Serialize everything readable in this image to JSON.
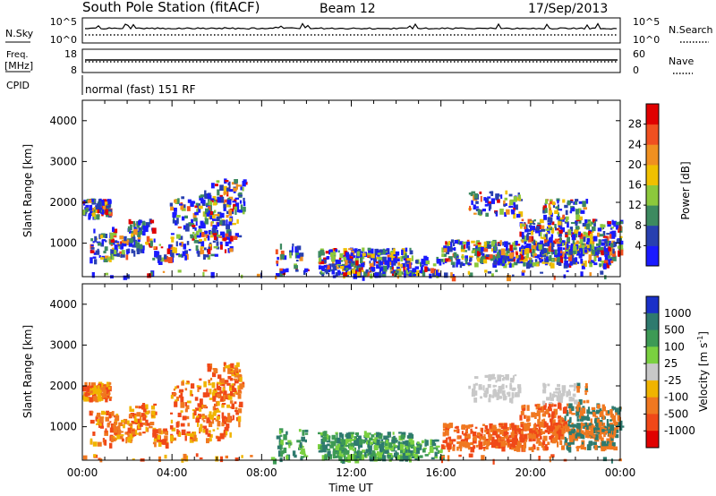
{
  "header": {
    "station": "South Pole Station (fitACF)",
    "beam": "Beam 12",
    "date": "17/Sep/2013"
  },
  "noise_panel": {
    "left_label": "N.Sky",
    "right_label": "N.Search",
    "left_ticks": [
      "10^5",
      "10^0"
    ],
    "right_ticks": [
      "10^5",
      "10^0"
    ]
  },
  "freq_panel": {
    "left_label_1": "Freq.",
    "left_label_2": "[MHz]",
    "right_label": "Nave",
    "left_ticks": [
      "18",
      "8"
    ],
    "right_ticks": [
      "60",
      "0"
    ]
  },
  "cpid_panel": {
    "label": "CPID",
    "text": "normal (fast) 151 RF"
  },
  "chart_data": [
    {
      "type": "heatmap",
      "ylabel": "Slant Range [km]",
      "ylim": [
        180,
        4500
      ],
      "y_ticks": [
        1000,
        2000,
        3000,
        4000
      ],
      "x_ticks": [
        "00:00",
        "04:00",
        "08:00",
        "12:00",
        "16:00",
        "20:00",
        "00:00"
      ],
      "colorbar": {
        "label": "Power [dB]",
        "ticks": [
          "4",
          "8",
          "12",
          "16",
          "20",
          "24",
          "28"
        ],
        "colors": [
          "#1a1aff",
          "#2840b0",
          "#3d8a60",
          "#8cc83c",
          "#f0c000",
          "#f09020",
          "#f05020",
          "#e00000"
        ]
      }
    },
    {
      "type": "heatmap",
      "ylabel": "Slant Range [km]",
      "ylim": [
        180,
        4500
      ],
      "y_ticks": [
        1000,
        2000,
        3000,
        4000
      ],
      "x_ticks": [
        "00:00",
        "04:00",
        "08:00",
        "12:00",
        "16:00",
        "20:00",
        "00:00"
      ],
      "xlabel": "Time UT",
      "colorbar": {
        "label": "Velocity [m s",
        "label_sup": "-1",
        "label_close": "]",
        "ticks": [
          "1000",
          "500",
          "100",
          "25",
          "-25",
          "-100",
          "-500",
          "-1000"
        ],
        "colors": [
          "#1a30c8",
          "#2e7a6e",
          "#3d9a55",
          "#7ad040",
          "#c8c8c8",
          "#f0b400",
          "#f07820",
          "#f04818",
          "#e00000"
        ]
      }
    }
  ]
}
